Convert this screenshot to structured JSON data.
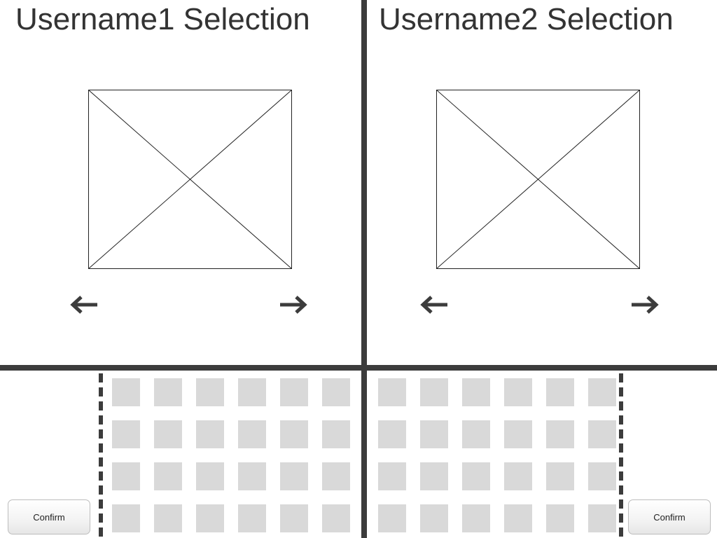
{
  "player1": {
    "title": "Username1 Selection",
    "confirm_label": "Confirm",
    "tiles": 24
  },
  "player2": {
    "title": "Username2 Selection",
    "confirm_label": "Confirm",
    "tiles": 24
  },
  "icons": {
    "prev": "arrow-left-icon",
    "next": "arrow-right-icon",
    "placeholder": "image-placeholder-icon"
  },
  "colors": {
    "divider": "#3c3c3c",
    "tile": "#d9d9d9",
    "text": "#333333"
  }
}
